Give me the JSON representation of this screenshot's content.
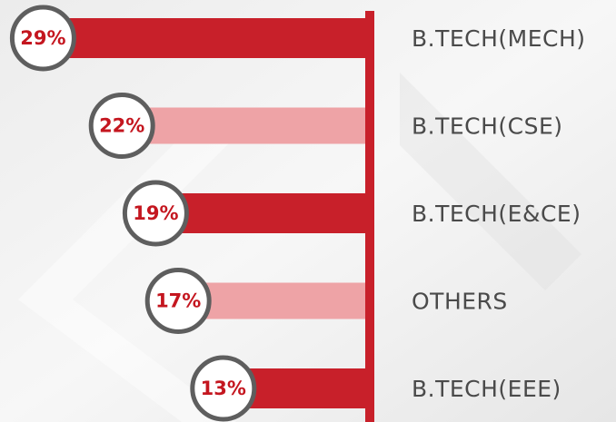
{
  "chart_data": {
    "type": "bar",
    "orientation": "horizontal",
    "categories": [
      "B.TECH(MECH)",
      "B.TECH(CSE)",
      "B.TECH(E&CE)",
      "OTHERS",
      "B.TECH(EEE)"
    ],
    "values": [
      29,
      22,
      19,
      17,
      13
    ],
    "value_labels": [
      "29%",
      "22%",
      "19%",
      "17%",
      "13%"
    ],
    "colors": [
      "#c8202a",
      "#eea3a6",
      "#c8202a",
      "#eea3a6",
      "#c8202a"
    ]
  }
}
